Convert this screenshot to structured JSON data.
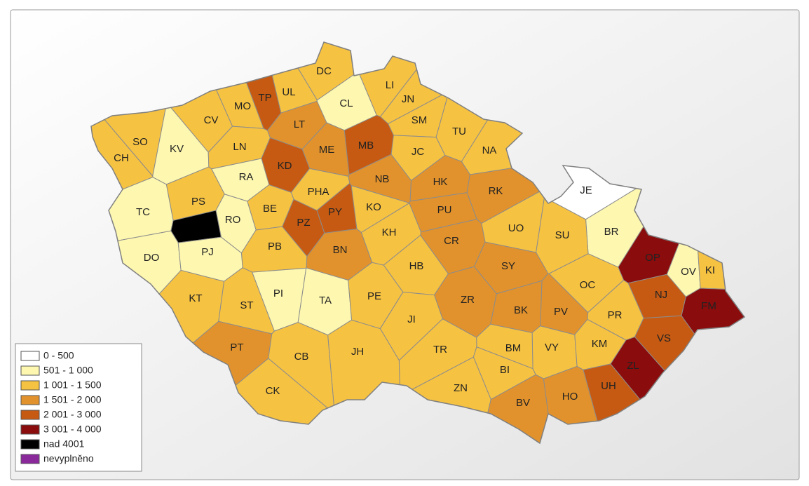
{
  "map": {
    "districts": [
      {
        "code": "TP",
        "color": "#c65a12"
      },
      {
        "code": "UL",
        "color": "#f6c242"
      },
      {
        "code": "DC",
        "color": "#f6c242"
      },
      {
        "code": "CL",
        "color": "#fdf7b0"
      },
      {
        "code": "LI",
        "color": "#f6c242"
      },
      {
        "code": "JN",
        "color": "#f6c242"
      },
      {
        "code": "MO",
        "color": "#f6c242"
      },
      {
        "code": "CV",
        "color": "#f6c242"
      },
      {
        "code": "LT",
        "color": "#e2922c"
      },
      {
        "code": "SM",
        "color": "#f6c242"
      },
      {
        "code": "TU",
        "color": "#f6c242"
      },
      {
        "code": "SO",
        "color": "#f6c242"
      },
      {
        "code": "KV",
        "color": "#fdf7b0"
      },
      {
        "code": "CH",
        "color": "#f6c242"
      },
      {
        "code": "LN",
        "color": "#f6c242"
      },
      {
        "code": "ME",
        "color": "#e2922c"
      },
      {
        "code": "MB",
        "color": "#c65a12"
      },
      {
        "code": "JC",
        "color": "#f6c242"
      },
      {
        "code": "NA",
        "color": "#f6c242"
      },
      {
        "code": "KD",
        "color": "#c65a12"
      },
      {
        "code": "RA",
        "color": "#fdf7b0"
      },
      {
        "code": "NB",
        "color": "#e2922c"
      },
      {
        "code": "HK",
        "color": "#e2922c"
      },
      {
        "code": "RK",
        "color": "#e2922c"
      },
      {
        "code": "JE",
        "color": "#ffffff"
      },
      {
        "code": "PHA",
        "color": "#f6c242"
      },
      {
        "code": "PS",
        "color": "#f6c242"
      },
      {
        "code": "TC",
        "color": "#fdf7b0"
      },
      {
        "code": "BE",
        "color": "#f6c242"
      },
      {
        "code": "KO",
        "color": "#f6c242"
      },
      {
        "code": "PU",
        "color": "#e2922c"
      },
      {
        "code": "PY",
        "color": "#c65a12"
      },
      {
        "code": "RO",
        "color": "#fdf7b0"
      },
      {
        "code": null,
        "color": "#000000"
      },
      {
        "code": "PZ",
        "color": "#c65a12"
      },
      {
        "code": "UO",
        "color": "#f6c242"
      },
      {
        "code": "BR",
        "color": "#fdf7b0"
      },
      {
        "code": "SU",
        "color": "#f6c242"
      },
      {
        "code": "KH",
        "color": "#f6c242"
      },
      {
        "code": "CR",
        "color": "#e2922c"
      },
      {
        "code": "PB",
        "color": "#f6c242"
      },
      {
        "code": "BN",
        "color": "#e2922c"
      },
      {
        "code": "DO",
        "color": "#fdf7b0"
      },
      {
        "code": "PJ",
        "color": "#fdf7b0"
      },
      {
        "code": "OP",
        "color": "#8a0c0c"
      },
      {
        "code": "OV",
        "color": "#fdf7b0"
      },
      {
        "code": "KI",
        "color": "#f6c242"
      },
      {
        "code": "SY",
        "color": "#e2922c"
      },
      {
        "code": "HB",
        "color": "#f6c242"
      },
      {
        "code": "OC",
        "color": "#f6c242"
      },
      {
        "code": "NJ",
        "color": "#c65a12"
      },
      {
        "code": "KT",
        "color": "#f6c242"
      },
      {
        "code": "PI",
        "color": "#fdf7b0"
      },
      {
        "code": "TA",
        "color": "#fdf7b0"
      },
      {
        "code": "ST",
        "color": "#f6c242"
      },
      {
        "code": "PE",
        "color": "#f6c242"
      },
      {
        "code": "ZR",
        "color": "#e2922c"
      },
      {
        "code": "BK",
        "color": "#e2922c"
      },
      {
        "code": "PV",
        "color": "#e2922c"
      },
      {
        "code": "FM",
        "color": "#8a0c0c"
      },
      {
        "code": "PR",
        "color": "#f6c242"
      },
      {
        "code": "JI",
        "color": "#f6c242"
      },
      {
        "code": "VS",
        "color": "#c65a12"
      },
      {
        "code": "VY",
        "color": "#f6c242"
      },
      {
        "code": "BM",
        "color": "#f6c242"
      },
      {
        "code": "KM",
        "color": "#f6c242"
      },
      {
        "code": "PT",
        "color": "#e2922c"
      },
      {
        "code": "TR",
        "color": "#f6c242"
      },
      {
        "code": "JH",
        "color": "#f6c242"
      },
      {
        "code": "CB",
        "color": "#f6c242"
      },
      {
        "code": "ZL",
        "color": "#8a0c0c"
      },
      {
        "code": "BI",
        "color": "#f6c242"
      },
      {
        "code": "UH",
        "color": "#c65a12"
      },
      {
        "code": "ZN",
        "color": "#f6c242"
      },
      {
        "code": "CK",
        "color": "#f6c242"
      },
      {
        "code": "BV",
        "color": "#e2922c"
      },
      {
        "code": "HO",
        "color": "#e2922c"
      }
    ]
  },
  "legend": [
    {
      "label": "0 - 500",
      "color": "#ffffff"
    },
    {
      "label": "501 - 1 000",
      "color": "#fdf7b0"
    },
    {
      "label": "1 001 - 1 500",
      "color": "#f6c242"
    },
    {
      "label": "1 501 - 2 000",
      "color": "#e2922c"
    },
    {
      "label": "2 001 - 3 000",
      "color": "#c65a12"
    },
    {
      "label": "3 001 - 4 000",
      "color": "#8a0c0c"
    },
    {
      "label": "nad 4001",
      "color": "#000000"
    },
    {
      "label": "nevyplněno",
      "color": "#8a2a9a",
      "pattern": "grid"
    }
  ]
}
